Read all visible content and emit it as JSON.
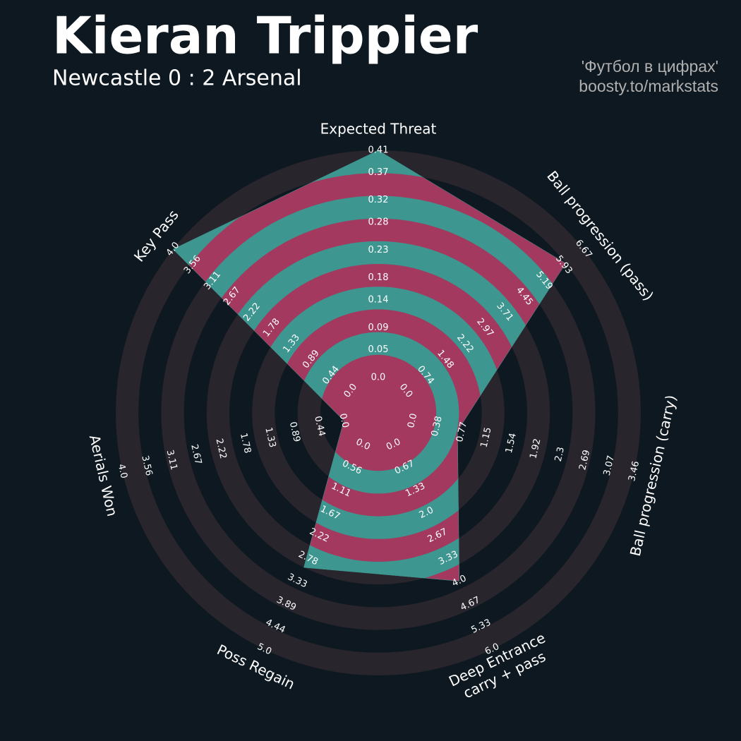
{
  "title": "Kieran Trippier",
  "subtitle": "Newcastle 0 : 2 Arsenal",
  "credits": [
    "'Футбол в цифрах'",
    "boosty.to/markstats"
  ],
  "chart_data": {
    "type": "radar",
    "categories": [
      "Expected Threat",
      "Ball progression (pass)",
      "Ball progression (carry)",
      "Deep Entrance\ncarry + pass",
      "Poss Regain",
      "Aerials Won",
      "Key Pass"
    ],
    "values": [
      0.41,
      6,
      0.7,
      4,
      3,
      0,
      4
    ],
    "rlims": [
      [
        0,
        0.41
      ],
      [
        0,
        6.67
      ],
      [
        0,
        3.46
      ],
      [
        0,
        6
      ],
      [
        0,
        5
      ],
      [
        0,
        4
      ],
      [
        0,
        4
      ]
    ],
    "rticks": [
      [
        {
          "value": 0,
          "label": "0.0"
        },
        0.05,
        0.09,
        0.14,
        0.18,
        0.23,
        0.28,
        0.32,
        0.37,
        0.41
      ],
      [
        {
          "value": 0,
          "label": "0.0"
        },
        0.74,
        1.48,
        2.22,
        2.97,
        3.71,
        4.45,
        5.19,
        5.93,
        6.67
      ],
      [
        {
          "value": 0,
          "label": "0.0"
        },
        0.38,
        0.77,
        1.15,
        1.54,
        1.92,
        2.3,
        2.69,
        3.07,
        3.46
      ],
      [
        {
          "value": 0,
          "label": "0.0"
        },
        0.67,
        1.33,
        {
          "value": 2,
          "label": "2.0"
        },
        2.67,
        3.33,
        {
          "value": 4,
          "label": "4.0"
        },
        4.67,
        5.33,
        {
          "value": 6,
          "label": "6.0"
        }
      ],
      [
        {
          "value": 0,
          "label": "0.0"
        },
        0.56,
        1.11,
        1.67,
        2.22,
        2.78,
        3.33,
        3.89,
        4.44,
        {
          "value": 5,
          "label": "5.0"
        }
      ],
      [
        {
          "value": 0,
          "label": "0.0"
        },
        0.44,
        0.89,
        1.33,
        1.78,
        2.22,
        2.67,
        3.11,
        3.56,
        {
          "value": 4,
          "label": "4.0"
        }
      ],
      [
        {
          "value": 0,
          "label": "0.0"
        },
        0.44,
        0.89,
        1.33,
        1.78,
        2.22,
        2.67,
        3.11,
        3.56,
        {
          "value": 4,
          "label": "4.0"
        }
      ]
    ],
    "colors": {
      "inside": [
        "#3d968f",
        "#a3395e"
      ],
      "outside": [
        "#28252c",
        "#0e1820"
      ]
    }
  }
}
